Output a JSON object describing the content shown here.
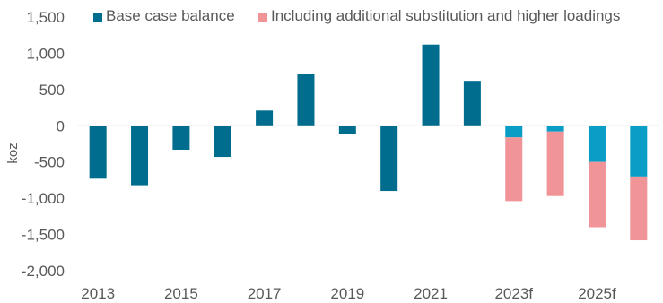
{
  "chart_data": {
    "type": "bar",
    "stacked": true,
    "title": "",
    "xlabel": "",
    "ylabel": "koz",
    "ylim": [
      -2000,
      1500
    ],
    "yticks": [
      1500,
      1000,
      500,
      0,
      -500,
      -1000,
      -1500,
      -2000
    ],
    "ytick_labels": [
      "1,500",
      "1,000",
      "500",
      "0",
      "-500",
      "-1,000",
      "-1,500",
      "-2,000"
    ],
    "categories": [
      "2013",
      "2014",
      "2015",
      "2016",
      "2017",
      "2018",
      "2019",
      "2020",
      "2021",
      "2022",
      "2023f",
      "2024f",
      "2025f",
      "2026f"
    ],
    "xtick_labels": [
      "2013",
      "",
      "2015",
      "",
      "2017",
      "",
      "2019",
      "",
      "2021",
      "",
      "2023f",
      "",
      "2025f",
      ""
    ],
    "grid": false,
    "legend_position": "top",
    "series": [
      {
        "name": "Base case balance",
        "values": [
          -730,
          -820,
          -330,
          -430,
          210,
          710,
          -110,
          -900,
          1120,
          620,
          -160,
          -80,
          -500,
          -700
        ]
      },
      {
        "name": "Including additional substitution and higher loadings",
        "values": [
          0,
          0,
          0,
          0,
          0,
          0,
          0,
          0,
          0,
          0,
          -880,
          -890,
          -900,
          -880
        ]
      }
    ],
    "colors": {
      "base_actual": "#006d8f",
      "base_forecast": "#0a9ec7",
      "additional": "#f09497",
      "axis": "#d9d9d9"
    }
  }
}
